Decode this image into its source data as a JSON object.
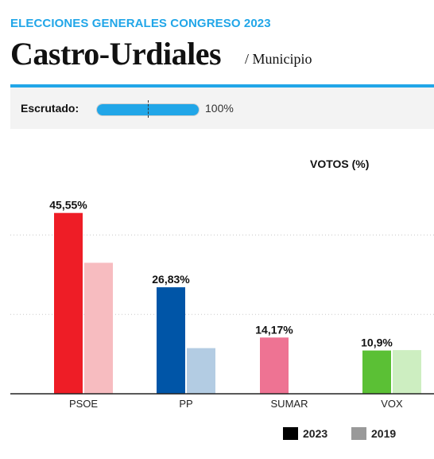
{
  "header": {
    "kicker": "ELECCIONES GENERALES CONGRESO 2023",
    "title": "Castro-Urdiales",
    "subtitle": "/ Municipio"
  },
  "status": {
    "label": "Escrutado:",
    "progress_pct": 100,
    "progress_text": "100%"
  },
  "colors": {
    "accent": "#21a6e8",
    "legend_2023": "#000000",
    "legend_2019": "#999999"
  },
  "chart_data": {
    "type": "bar",
    "title": "VOTOS (%)",
    "categories": [
      "PSOE",
      "PP",
      "SUMAR",
      "VOX"
    ],
    "series": [
      {
        "name": "2023",
        "values": [
          45.55,
          26.83,
          14.17,
          10.9
        ],
        "labels": [
          "45,55%",
          "26,83%",
          "14,17%",
          "10,9%"
        ],
        "colors": [
          "#ee1d26",
          "#0055a7",
          "#ee7393",
          "#5bc035"
        ]
      },
      {
        "name": "2019",
        "values": [
          33,
          11.5,
          null,
          11
        ],
        "colors": [
          "#f7bcc0",
          "#b3cce3",
          null,
          "#cdeec1"
        ]
      }
    ],
    "ylim": [
      0,
      50
    ],
    "gridlines": [
      20,
      40
    ],
    "legend_position": "bottom-right"
  }
}
